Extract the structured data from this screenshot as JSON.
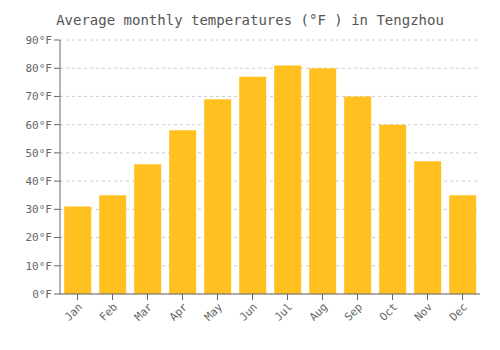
{
  "chart_data": {
    "type": "bar",
    "title": "Average monthly temperatures (°F ) in Tengzhou",
    "categories": [
      "Jan",
      "Feb",
      "Mar",
      "Apr",
      "May",
      "Jun",
      "Jul",
      "Aug",
      "Sep",
      "Oct",
      "Nov",
      "Dec"
    ],
    "values": [
      31,
      35,
      46,
      58,
      69,
      77,
      81,
      80,
      70,
      60,
      47,
      35
    ],
    "color": "#FFC020",
    "ylim": [
      0,
      90
    ],
    "yticks": [
      {
        "value": 0,
        "label": "0°F"
      },
      {
        "value": 10,
        "label": "10°F"
      },
      {
        "value": 20,
        "label": "20°F"
      },
      {
        "value": 30,
        "label": "30°F"
      },
      {
        "value": 40,
        "label": "40°F"
      },
      {
        "value": 50,
        "label": "50°F"
      },
      {
        "value": 60,
        "label": "60°F"
      },
      {
        "value": 70,
        "label": "70°F"
      },
      {
        "value": 80,
        "label": "80°F"
      },
      {
        "value": 90,
        "label": "90°F"
      }
    ],
    "grid": true
  }
}
